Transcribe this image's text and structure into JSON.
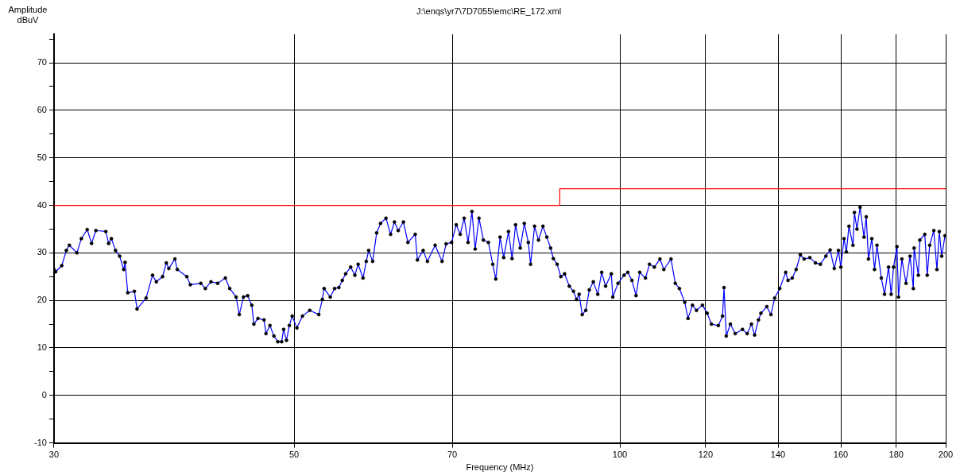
{
  "chart_data": {
    "type": "line",
    "title": "J:\\enqs\\yr7\\7D7055\\emc\\RE_172.xml",
    "xlabel": "Frequency (MHz)",
    "ylabel": "Amplitude\ndBuV",
    "log": "x",
    "grid": true,
    "legend": false,
    "marker": "circle",
    "line_style": "solid",
    "xlim": [
      30,
      200
    ],
    "xticks": [
      30,
      50,
      70,
      100,
      120,
      140,
      160,
      180,
      200
    ],
    "ylim": [
      -10,
      76
    ],
    "yticks": [
      -10,
      {
        "value": -5,
        "label": null
      },
      0,
      {
        "value": 5,
        "label": null
      },
      10,
      {
        "value": 15,
        "label": null
      },
      20,
      {
        "value": 25,
        "label": null
      },
      30,
      {
        "value": 35,
        "label": null
      },
      40,
      {
        "value": 45,
        "label": null
      },
      50,
      {
        "value": 55,
        "label": null
      },
      60,
      {
        "value": 65,
        "label": null
      },
      70,
      {
        "value": 75,
        "label": null
      }
    ],
    "series": [
      {
        "type": "step",
        "color": "#ff0000",
        "marker": "none",
        "x": [
          30,
          88,
          200
        ],
        "values": [
          40,
          43.5,
          43.5
        ]
      },
      {
        "color": "#0000ff",
        "x": [
          30,
          30.1,
          30.5,
          30.8,
          31.0,
          31.5,
          31.8,
          32.2,
          32.5,
          32.8,
          33.5,
          33.7,
          33.9,
          34.2,
          34.5,
          34.8,
          34.9,
          35.1,
          35.6,
          35.8,
          36.5,
          37.0,
          37.3,
          37.8,
          38.1,
          38.3,
          38.8,
          39.0,
          39.8,
          40.1,
          41.0,
          41.4,
          41.9,
          42.5,
          43.2,
          43.6,
          44.2,
          44.5,
          44.9,
          45.3,
          45.7,
          45.9,
          46.3,
          46.9,
          47.1,
          47.5,
          47.9,
          48.3,
          48.7,
          48.9,
          49.2,
          49.5,
          49.8,
          50.3,
          50.9,
          51.7,
          52.7,
          53.1,
          53.3,
          54.0,
          54.5,
          55.0,
          55.4,
          55.8,
          56.4,
          56.9,
          57.3,
          57.9,
          58.3,
          58.6,
          59.1,
          59.6,
          60.1,
          60.8,
          61.4,
          61.9,
          62.4,
          63.1,
          63.7,
          64.7,
          65.0,
          65.8,
          66.4,
          67.5,
          68.5,
          69.1,
          69.9,
          70.6,
          71.2,
          71.8,
          72.4,
          73.0,
          73.5,
          74.1,
          74.8,
          75.6,
          76.3,
          76.8,
          77.5,
          78.1,
          78.9,
          79.5,
          80.1,
          80.9,
          81.6,
          82.3,
          82.7,
          83.4,
          84.1,
          84.9,
          85.6,
          86.3,
          86.8,
          87.5,
          88.2,
          88.9,
          89.8,
          90.6,
          91.2,
          91.7,
          92.3,
          93.0,
          93.7,
          94.5,
          95.4,
          96.2,
          97.0,
          98.2,
          98.5,
          99.6,
          100.9,
          101.7,
          102.6,
          103.5,
          104.3,
          105.6,
          106.5,
          107.6,
          108.9,
          109.8,
          111.5,
          112.5,
          113.5,
          114.8,
          115.6,
          116.7,
          117.7,
          119.2,
          120.4,
          121.5,
          123.3,
          124.4,
          124.8,
          125.4,
          126.5,
          127.8,
          129.8,
          131.1,
          132.3,
          133.2,
          134.3,
          135,
          136.7,
          137.9,
          139.0,
          140.5,
          142.3,
          143.0,
          144.3,
          145.5,
          146.8,
          148.0,
          149.8,
          151.6,
          153.2,
          155,
          156.4,
          157.8,
          159.2,
          160,
          161.1,
          161.9,
          162.8,
          164.2,
          164.7,
          165.6,
          166.7,
          168.1,
          168.9,
          169.7,
          170.9,
          171.9,
          172.8,
          174.4,
          175.6,
          177.1,
          178.1,
          179.0,
          180.3,
          180.9,
          182.2,
          183.8,
          185.4,
          186.7,
          187.0,
          188.7,
          189.3,
          191.3,
          192.3,
          193.3,
          195,
          196.3,
          197.3,
          198.3,
          199.7
        ],
        "values": [
          26.5,
          26,
          27.3,
          30.5,
          31.6,
          30,
          33,
          34.9,
          32,
          34.7,
          34.5,
          32,
          33,
          30.5,
          29.3,
          26.5,
          28,
          21.6,
          21.9,
          18.2,
          20.5,
          25.3,
          23.9,
          25,
          27.9,
          26.7,
          28.7,
          26.5,
          25,
          23.3,
          23.6,
          22.5,
          23.9,
          23.6,
          24.7,
          22.5,
          20.7,
          17,
          20.7,
          21,
          19,
          15,
          16.2,
          15.9,
          13,
          14.7,
          12.5,
          11.3,
          11.3,
          13.9,
          11.6,
          14.7,
          16.7,
          14.2,
          16.7,
          17.9,
          17,
          20.2,
          22.5,
          20.7,
          22.5,
          22.7,
          24.2,
          25.6,
          27,
          25.3,
          27.6,
          24.7,
          28.2,
          30.5,
          28.2,
          34.2,
          36.2,
          37.3,
          33.9,
          36.5,
          34.7,
          36.5,
          32.2,
          33.9,
          28.5,
          30.5,
          28.2,
          31.6,
          28.2,
          31.9,
          32.2,
          35.9,
          33.9,
          37.3,
          32.2,
          38.7,
          30.8,
          37.3,
          32.7,
          32.2,
          27.6,
          24.5,
          33.3,
          29,
          34.5,
          28.8,
          35.9,
          31,
          36.2,
          32.2,
          27.6,
          35.6,
          32.7,
          35.6,
          33.3,
          31,
          28.8,
          27.6,
          25,
          25.6,
          23,
          21.9,
          20.2,
          21.3,
          17,
          17.9,
          22.2,
          23.9,
          21.3,
          25.9,
          23,
          25.6,
          20.7,
          23.6,
          25.3,
          25.9,
          24.2,
          21,
          25.9,
          24.7,
          27.6,
          27,
          28.7,
          26.5,
          28.7,
          23.6,
          22.5,
          19.6,
          16.2,
          19,
          17.9,
          19,
          17.3,
          15,
          14.7,
          16.7,
          22.7,
          12.5,
          15,
          13,
          13.9,
          13,
          15,
          12.7,
          15.9,
          17.3,
          18.7,
          17,
          20.5,
          22.5,
          25.9,
          24.2,
          24.7,
          26.5,
          29.6,
          28.7,
          29,
          27.9,
          27.6,
          29.3,
          30.6,
          26.7,
          30.5,
          27,
          33,
          30.2,
          35.6,
          31.6,
          38.5,
          35,
          39.6,
          33.3,
          37.6,
          28.7,
          33,
          26.5,
          31.6,
          24.7,
          21.3,
          27,
          21.3,
          27,
          31.3,
          20.7,
          28.7,
          23.6,
          29.3,
          22.5,
          31,
          25.3,
          32.7,
          33.9,
          25.3,
          31.6,
          34.7,
          26.5,
          34.5,
          29.3,
          33.6
        ]
      }
    ]
  }
}
